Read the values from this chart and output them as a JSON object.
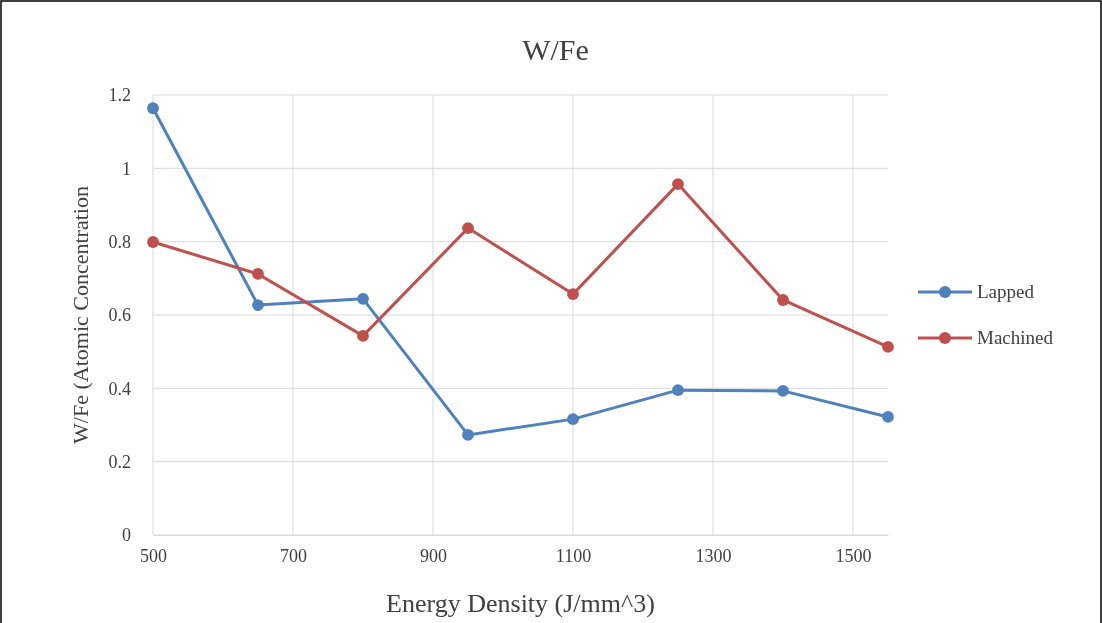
{
  "chart_data": {
    "type": "line",
    "title": "W/Fe",
    "xlabel": "Energy Density (J/mm^3)",
    "ylabel": "W/Fe (Atomic Concentration",
    "x": [
      500,
      650,
      800,
      950,
      1100,
      1250,
      1400,
      1550
    ],
    "series": [
      {
        "name": "Lapped",
        "color": "#4f81bd",
        "values": [
          1.164,
          0.627,
          0.644,
          0.273,
          0.316,
          0.395,
          0.393,
          0.322
        ]
      },
      {
        "name": "Machined",
        "color": "#c0504d",
        "values": [
          0.799,
          0.712,
          0.543,
          0.837,
          0.657,
          0.957,
          0.641,
          0.513
        ]
      }
    ],
    "xlim": [
      500,
      1550
    ],
    "xticks": [
      500,
      700,
      900,
      1100,
      1300,
      1500
    ],
    "ylim": [
      0,
      1.2
    ],
    "yticks": [
      0,
      0.2,
      0.4,
      0.6,
      0.8,
      1,
      1.2
    ],
    "grid": true,
    "legend": "right",
    "marker": "circle",
    "line_style": "solid"
  }
}
